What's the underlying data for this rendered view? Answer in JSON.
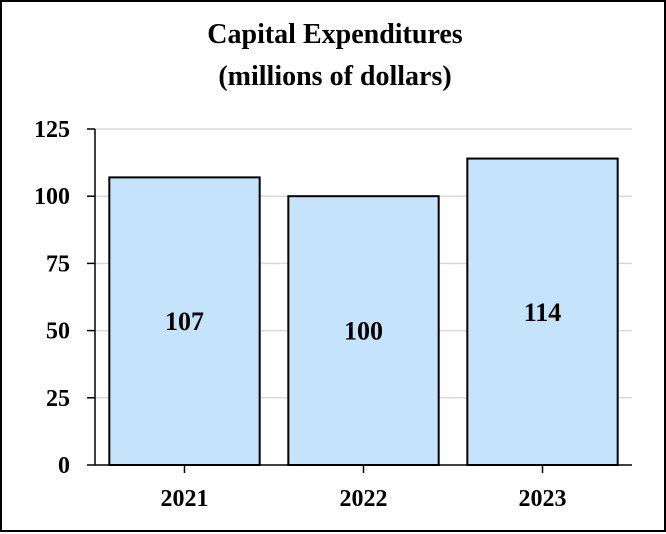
{
  "chart_data": {
    "type": "bar",
    "title_line1": "Capital Expenditures",
    "title_line2": "(millions of dollars)",
    "categories": [
      "2021",
      "2022",
      "2023"
    ],
    "values": [
      107,
      100,
      114
    ],
    "value_labels": [
      "107",
      "100",
      "114"
    ],
    "ylim": [
      0,
      125
    ],
    "yticks": [
      0,
      25,
      50,
      75,
      100,
      125
    ],
    "ytick_labels": [
      "0",
      "25",
      "50",
      "75",
      "100",
      "125"
    ],
    "xlabel": "",
    "ylabel": "",
    "grid": true,
    "bar_color": "#C5E3FB",
    "bar_edge_color": "#000000",
    "grid_color": "#D9D9D9"
  }
}
